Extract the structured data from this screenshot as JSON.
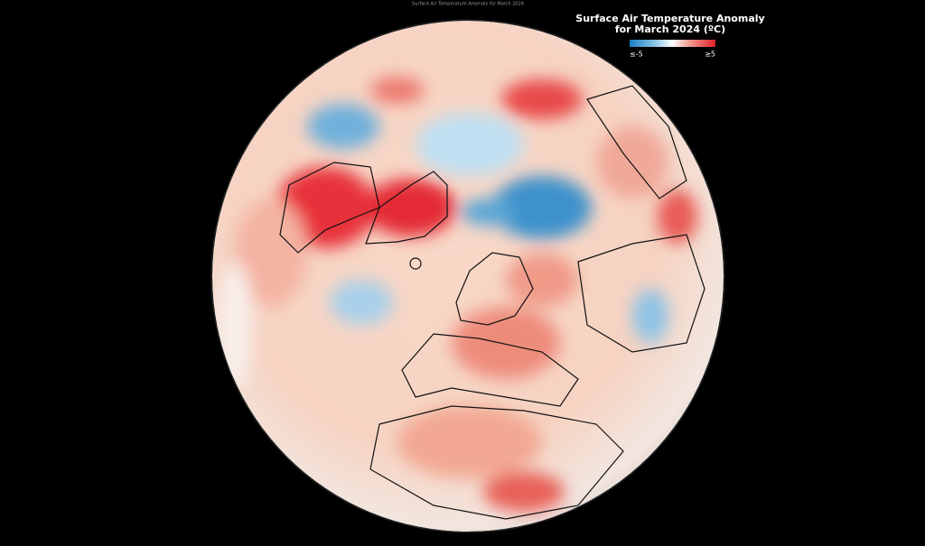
{
  "header": {
    "caption": "Surface Air Temperature Anomaly for March 2024"
  },
  "legend": {
    "title_lines": [
      "Surface Air Temperature Anomaly",
      "for March 2024 (ºC)"
    ],
    "min_label": "≤-5",
    "max_label": "≥5"
  }
}
